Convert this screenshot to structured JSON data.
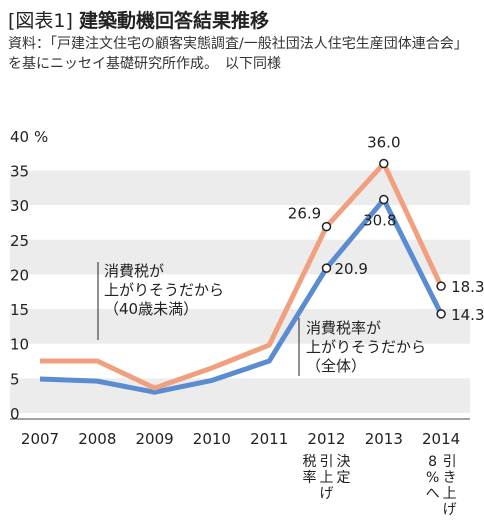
{
  "header": {
    "tag": "[図表1]",
    "title": "建築動機回答結果推移",
    "source": "資料：「戸建注文住宅の顧客実態調査/一般社団法人住宅生産団体連合会」を基にニッセイ基礎研究所作成。　以下同様"
  },
  "chart_data": {
    "type": "line",
    "title": "建築動機回答結果推移",
    "y_unit": "%",
    "ylim": [
      0,
      40
    ],
    "yticks": [
      0,
      5,
      10,
      15,
      20,
      25,
      30,
      35,
      40
    ],
    "ytick_labels": [
      "0",
      "5",
      "10",
      "15",
      "20",
      "25",
      "30",
      "35",
      "40"
    ],
    "grid": "horizontal bands",
    "x": [
      "2007",
      "2008",
      "2009",
      "2010",
      "2011",
      "2012",
      "2013",
      "2014"
    ],
    "series": [
      {
        "name": "消費税率が上がりそうだから（全体）",
        "color": "#5b8bd0",
        "values": [
          4.9,
          4.6,
          3.0,
          4.7,
          7.5,
          20.9,
          30.8,
          14.3
        ]
      },
      {
        "name": "消費税が上がりそうだから（40歳未満）",
        "color": "#f0a07e",
        "values": [
          7.5,
          7.5,
          3.6,
          6.5,
          9.8,
          26.9,
          36.0,
          18.3
        ]
      }
    ],
    "data_labels": [
      {
        "series": 1,
        "index": 5,
        "text": "26.9"
      },
      {
        "series": 1,
        "index": 6,
        "text": "36.0"
      },
      {
        "series": 1,
        "index": 7,
        "text": "18.3"
      },
      {
        "series": 0,
        "index": 5,
        "text": "20.9"
      },
      {
        "series": 0,
        "index": 6,
        "text": "30.8"
      },
      {
        "series": 0,
        "index": 7,
        "text": "14.3"
      }
    ],
    "annotations": [
      {
        "x_index": 5,
        "lines": [
          "決定",
          "引上げ",
          "税率"
        ]
      },
      {
        "x_index": 7,
        "lines": [
          "引き上げ",
          "8%へ"
        ]
      }
    ],
    "series_labels": [
      {
        "series": 1,
        "lines": [
          "消費税が",
          "上がりそうだから",
          "（40歳未満）"
        ]
      },
      {
        "series": 0,
        "lines": [
          "消費税率が",
          "上がりそうだから",
          "（全体）"
        ]
      }
    ]
  }
}
